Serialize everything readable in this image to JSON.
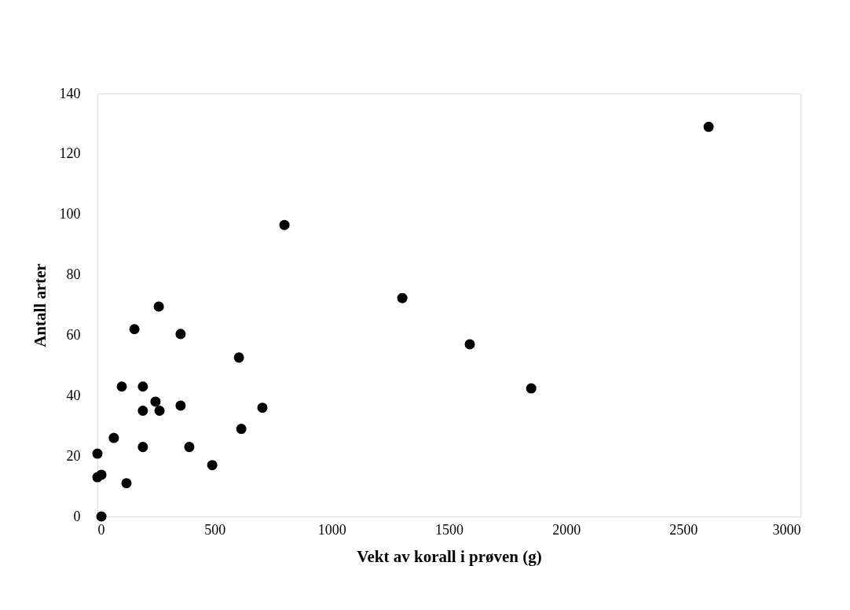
{
  "chart_data": {
    "type": "scatter",
    "xlabel": "Vekt av korall i prøven (g)",
    "ylabel": "Antall arter",
    "x": [
      0,
      0,
      17,
      17,
      70,
      104,
      124,
      158,
      194,
      194,
      194,
      248,
      262,
      265,
      355,
      355,
      392,
      490,
      604,
      614,
      704,
      798,
      1301,
      1589,
      1851,
      2608
    ],
    "series": [
      {
        "color": "#000000",
        "values": [
          20.8,
          13,
          13.8,
          0,
          26,
          43,
          11,
          62,
          43,
          35,
          23,
          38,
          69.5,
          35,
          60.4,
          36.7,
          23,
          17,
          52.6,
          29,
          36,
          96.5,
          72.3,
          57,
          42.4,
          129
        ]
      }
    ],
    "xlim": [
      0,
      3000
    ],
    "xticks": [
      0,
      500,
      1000,
      1500,
      2000,
      2500,
      3000
    ],
    "ylim": [
      0,
      140
    ],
    "yticks": [
      0,
      20,
      40,
      60,
      80,
      100,
      120,
      140
    ],
    "grid": false,
    "legend": false,
    "marker": "circle"
  }
}
